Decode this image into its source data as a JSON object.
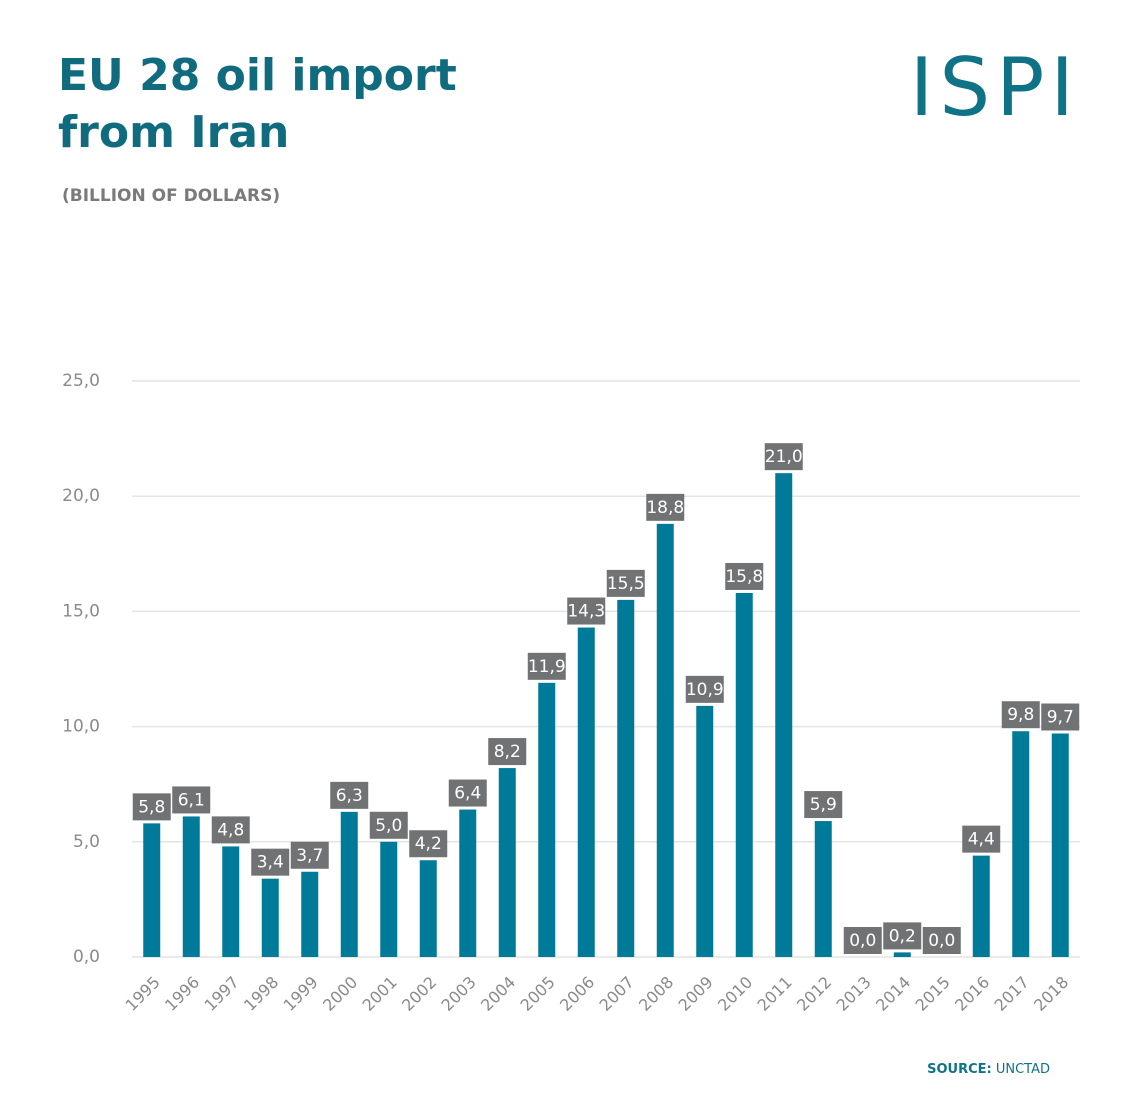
{
  "chart_data": {
    "type": "bar",
    "title_lines": [
      "EU 28 oil import",
      "from Iran"
    ],
    "subtitle": "(BILLION OF DOLLARS)",
    "logo": "ISPI",
    "source_label": "SOURCE:",
    "source": "UNCTAD",
    "categories": [
      "1995",
      "1996",
      "1997",
      "1998",
      "1999",
      "2000",
      "2001",
      "2002",
      "2003",
      "2004",
      "2005",
      "2006",
      "2007",
      "2008",
      "2009",
      "2010",
      "2011",
      "2012",
      "2013",
      "2014",
      "2015",
      "2016",
      "2017",
      "2018"
    ],
    "values": [
      5.8,
      6.1,
      4.8,
      3.4,
      3.7,
      6.3,
      5.0,
      4.2,
      6.4,
      8.2,
      11.9,
      14.3,
      15.5,
      18.8,
      10.9,
      15.8,
      21.0,
      5.9,
      0.0,
      0.2,
      0.0,
      4.4,
      9.8,
      9.7
    ],
    "value_labels": [
      "5,8",
      "6,1",
      "4,8",
      "3,4",
      "3,7",
      "6,3",
      "5,0",
      "4,2",
      "6,4",
      "8,2",
      "11,9",
      "14,3",
      "15,5",
      "18,8",
      "10,9",
      "15,8",
      "21,0",
      "5,9",
      "0,0",
      "0,2",
      "0,0",
      "4,4",
      "9,8",
      "9,7"
    ],
    "color": "#007a99",
    "label_box_color": "#717274",
    "ylim": [
      0,
      25
    ],
    "yticks": [
      {
        "value": 0,
        "label": "0,0"
      },
      {
        "value": 5,
        "label": "5,0"
      },
      {
        "value": 10,
        "label": "10,0"
      },
      {
        "value": 15,
        "label": "15,0"
      },
      {
        "value": 20,
        "label": "20,0"
      },
      {
        "value": 25,
        "label": "25,0"
      }
    ],
    "grid": true
  }
}
